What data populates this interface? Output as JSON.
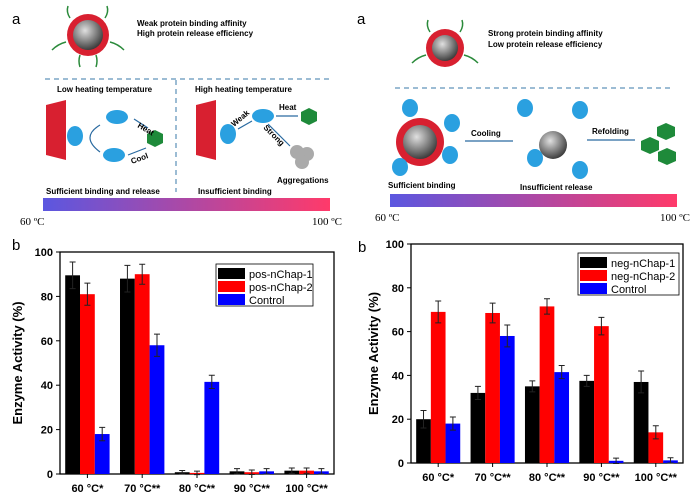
{
  "diagram_left": {
    "panel_label": "a",
    "desc_line1": "Weak protein binding affinity",
    "desc_line2": "High protein release efficiency",
    "low_title": "Low heating temperature",
    "high_title": "High heating temperature",
    "heat": "Heat",
    "cool": "Cool",
    "weak": "Weak",
    "strong": "Strong",
    "heat2": "Heat",
    "aggregations": "Aggregations",
    "caption_low": "Sufficient binding and release",
    "caption_high": "Insufficient binding",
    "temp_min": "60 ºC",
    "temp_max": "100 ºC"
  },
  "diagram_right": {
    "panel_label": "a",
    "desc_line1": "Strong protein binding affinity",
    "desc_line2": "Low protein release efficiency",
    "cooling": "Cooling",
    "refolding": "Refolding",
    "caption_binding": "Sufficient binding",
    "caption_release": "Insufficient release",
    "temp_min": "60 ºC",
    "temp_max": "100 ºC"
  },
  "colors": {
    "black": "#000000",
    "red": "#ff0000",
    "blue": "#0000ff",
    "grad_start": "#5b57e0",
    "grad_end": "#ff3a6a"
  },
  "chart_data": [
    {
      "type": "bar",
      "panel_label": "b",
      "ylabel": "Enzyme Activity (%)",
      "ylim": [
        0,
        100
      ],
      "yticks": [
        "0",
        "20",
        "40",
        "60",
        "80",
        "100"
      ],
      "categories": [
        "60 °C*",
        "70 °C**",
        "80 °C**",
        "90 °C**",
        "100 °C**"
      ],
      "legend_position": "top-right",
      "series": [
        {
          "name": "pos-nChap-1",
          "color": "#000000",
          "values": [
            89.5,
            88,
            0.8,
            1.2,
            1.5
          ],
          "errors": [
            6,
            6,
            0.8,
            1.2,
            1.2
          ]
        },
        {
          "name": "pos-nChap-2",
          "color": "#ff0000",
          "values": [
            81,
            90,
            0.5,
            0.8,
            1.5
          ],
          "errors": [
            5,
            4.5,
            0.8,
            1,
            1.2
          ]
        },
        {
          "name": "Control",
          "color": "#0000ff",
          "values": [
            18,
            58,
            41.5,
            1.2,
            1.2
          ],
          "errors": [
            3,
            5,
            3,
            1.2,
            1.2
          ]
        }
      ]
    },
    {
      "type": "bar",
      "panel_label": "b",
      "ylabel": "Enzyme Activity (%)",
      "ylim": [
        0,
        100
      ],
      "yticks": [
        "0",
        "20",
        "40",
        "60",
        "80",
        "100"
      ],
      "categories": [
        "60 °C*",
        "70 °C**",
        "80 °C**",
        "90 °C**",
        "100 °C**"
      ],
      "legend_position": "top-right",
      "series": [
        {
          "name": "neg-nChap-1",
          "color": "#000000",
          "values": [
            20,
            32,
            35,
            37.5,
            37
          ],
          "errors": [
            4,
            3,
            2.5,
            2.5,
            5
          ]
        },
        {
          "name": "neg-nChap-2",
          "color": "#ff0000",
          "values": [
            69,
            68.5,
            71.5,
            62.5,
            14
          ],
          "errors": [
            5,
            4.5,
            3.5,
            4,
            3
          ]
        },
        {
          "name": "Control",
          "color": "#0000ff",
          "values": [
            18,
            58,
            41.5,
            1,
            1.2
          ],
          "errors": [
            3,
            5,
            3,
            1.2,
            1.2
          ]
        }
      ]
    }
  ]
}
